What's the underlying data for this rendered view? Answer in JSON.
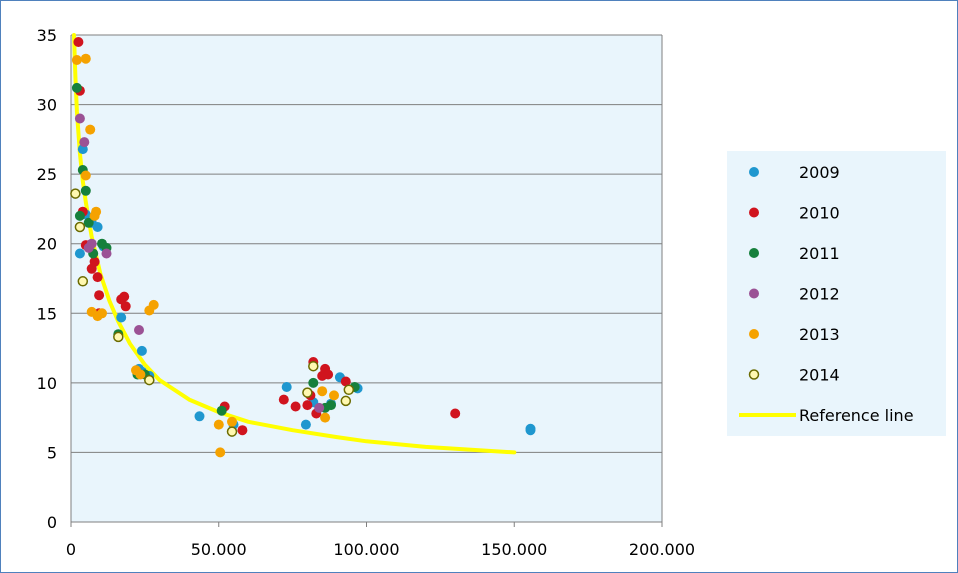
{
  "colors": {
    "plot_bg": "#e9f5fc",
    "grid": "#7f7f7f",
    "legend_bg": "#e9f5fc",
    "reference_line": "#ffff00"
  },
  "chart_data": {
    "type": "scatter",
    "xlim": [
      0,
      200000
    ],
    "ylim": [
      0,
      35
    ],
    "xticks": [
      0,
      50000,
      100000,
      150000,
      200000
    ],
    "xtick_labels": [
      "0",
      "50.000",
      "100.000",
      "150.000",
      "200.000"
    ],
    "yticks": [
      0,
      5,
      10,
      15,
      20,
      25,
      30,
      35
    ],
    "ytick_labels": [
      "0",
      "5",
      "10",
      "15",
      "20",
      "25",
      "30",
      "35"
    ],
    "grid": "horizontal",
    "legend_position": "right",
    "series": [
      {
        "name": "2009",
        "color": "#1f97cf",
        "marker": "filled",
        "points": [
          [
            3000,
            19.3
          ],
          [
            4000,
            26.8
          ],
          [
            5000,
            22.1
          ],
          [
            7000,
            21.5
          ],
          [
            9000,
            21.2
          ],
          [
            11000,
            19.8
          ],
          [
            17000,
            14.7
          ],
          [
            23000,
            11.0
          ],
          [
            24000,
            12.3
          ],
          [
            24000,
            10.8
          ],
          [
            26500,
            10.5
          ],
          [
            43500,
            7.6
          ],
          [
            55000,
            7.0
          ],
          [
            73000,
            9.7
          ],
          [
            79500,
            7.0
          ],
          [
            82000,
            8.6
          ],
          [
            88000,
            8.5
          ],
          [
            91000,
            10.4
          ],
          [
            97000,
            9.6
          ],
          [
            155500,
            6.6
          ],
          [
            155500,
            6.7
          ]
        ]
      },
      {
        "name": "2010",
        "color": "#d0141e",
        "marker": "filled",
        "points": [
          [
            2500,
            34.5
          ],
          [
            3000,
            31.0
          ],
          [
            4000,
            22.3
          ],
          [
            5000,
            19.9
          ],
          [
            7000,
            18.2
          ],
          [
            8000,
            18.7
          ],
          [
            9000,
            17.6
          ],
          [
            9500,
            16.3
          ],
          [
            9500,
            15.0
          ],
          [
            17000,
            16.0
          ],
          [
            18000,
            16.2
          ],
          [
            18500,
            15.5
          ],
          [
            52000,
            8.3
          ],
          [
            58000,
            6.6
          ],
          [
            72000,
            8.8
          ],
          [
            76000,
            8.3
          ],
          [
            80000,
            8.4
          ],
          [
            81000,
            9.1
          ],
          [
            82000,
            11.5
          ],
          [
            83000,
            7.8
          ],
          [
            85000,
            10.5
          ],
          [
            86000,
            11.0
          ],
          [
            87000,
            10.6
          ],
          [
            93000,
            10.1
          ],
          [
            130000,
            7.8
          ]
        ]
      },
      {
        "name": "2011",
        "color": "#16803c",
        "marker": "filled",
        "points": [
          [
            2000,
            31.2
          ],
          [
            3000,
            22.0
          ],
          [
            4000,
            25.3
          ],
          [
            5000,
            23.8
          ],
          [
            6000,
            21.5
          ],
          [
            7500,
            19.3
          ],
          [
            10500,
            20.0
          ],
          [
            12000,
            19.7
          ],
          [
            16000,
            13.5
          ],
          [
            22500,
            10.6
          ],
          [
            25000,
            10.6
          ],
          [
            51000,
            8.0
          ],
          [
            82000,
            10.0
          ],
          [
            86000,
            8.2
          ],
          [
            88000,
            8.4
          ],
          [
            96000,
            9.7
          ]
        ]
      },
      {
        "name": "2012",
        "color": "#9b5295",
        "marker": "filled",
        "points": [
          [
            3000,
            29.0
          ],
          [
            4500,
            27.3
          ],
          [
            6000,
            19.7
          ],
          [
            7000,
            20.0
          ],
          [
            12000,
            19.3
          ],
          [
            23000,
            13.8
          ],
          [
            84000,
            8.2
          ]
        ]
      },
      {
        "name": "2013",
        "color": "#f5a200",
        "marker": "filled",
        "points": [
          [
            2000,
            33.2
          ],
          [
            5000,
            33.3
          ],
          [
            5000,
            24.9
          ],
          [
            6500,
            28.2
          ],
          [
            7000,
            15.1
          ],
          [
            8000,
            22.0
          ],
          [
            8500,
            22.3
          ],
          [
            9000,
            14.8
          ],
          [
            10500,
            15.0
          ],
          [
            22000,
            10.9
          ],
          [
            23500,
            10.6
          ],
          [
            26500,
            15.2
          ],
          [
            28000,
            15.6
          ],
          [
            50000,
            7.0
          ],
          [
            50500,
            5.0
          ],
          [
            54500,
            7.2
          ],
          [
            85000,
            9.4
          ],
          [
            86000,
            7.5
          ],
          [
            89000,
            9.1
          ]
        ]
      },
      {
        "name": "2014",
        "color": "#c8d400",
        "marker": "hollow",
        "points": [
          [
            1500,
            23.6
          ],
          [
            3000,
            21.2
          ],
          [
            4000,
            17.3
          ],
          [
            16000,
            13.3
          ],
          [
            26500,
            10.2
          ],
          [
            54500,
            6.5
          ],
          [
            80000,
            9.3
          ],
          [
            82000,
            11.2
          ],
          [
            93000,
            8.7
          ],
          [
            94000,
            9.5
          ]
        ]
      }
    ],
    "reference_line": {
      "name": "Reference line",
      "color": "#ffff00",
      "points": [
        [
          1000,
          35.0
        ],
        [
          1500,
          32.0
        ],
        [
          2000,
          29.5
        ],
        [
          3000,
          26.5
        ],
        [
          4000,
          24.5
        ],
        [
          5000,
          23.0
        ],
        [
          7000,
          20.5
        ],
        [
          10000,
          17.8
        ],
        [
          13000,
          15.9
        ],
        [
          16000,
          14.4
        ],
        [
          20000,
          12.8
        ],
        [
          25000,
          11.3
        ],
        [
          30000,
          10.2
        ],
        [
          40000,
          8.8
        ],
        [
          50000,
          7.9
        ],
        [
          60000,
          7.2
        ],
        [
          75000,
          6.6
        ],
        [
          90000,
          6.1
        ],
        [
          100000,
          5.8
        ],
        [
          120000,
          5.4
        ],
        [
          150000,
          5.0
        ]
      ]
    }
  }
}
